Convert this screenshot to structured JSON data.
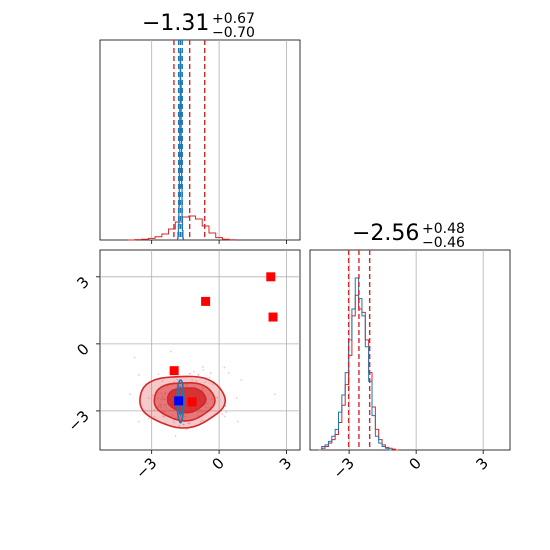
{
  "chart_data": {
    "type": "corner",
    "parameters": 2,
    "grid": true,
    "colors": {
      "blue": "#1f77b4",
      "red": "#d62728",
      "marker_red": "#ff0000",
      "marker_blue": "#0000ff",
      "grid": "#b0b0b0"
    },
    "titles": [
      {
        "value": "−1.31",
        "plus": "+0.67",
        "minus": "−0.70"
      },
      {
        "value": "−2.56",
        "plus": "+0.48",
        "minus": "−0.46"
      }
    ],
    "axes": {
      "p1_range": [
        -5.3,
        3.6
      ],
      "p2_range": [
        -4.75,
        4.2
      ],
      "p1_ticks": [
        -3,
        0,
        3
      ],
      "p2_ticks": [
        -3,
        0,
        3
      ],
      "tick_labels": {
        "-3": "−3",
        "0": "0",
        "3": "3"
      }
    },
    "hist1_quantile_lines": {
      "red": [
        -2.01,
        -1.31,
        -0.64
      ],
      "blue": [
        -1.8,
        -1.72,
        -1.64
      ]
    },
    "hist2_quantile_lines": {
      "red": [
        -3.02,
        -2.56,
        -2.08
      ]
    },
    "hist1_blue": {
      "x": [
        -1.84,
        -1.82,
        -1.8,
        -1.78,
        -1.76,
        -1.74,
        -1.72,
        -1.7,
        -1.68,
        -1.66,
        -1.64,
        -1.62,
        -1.6
      ],
      "y": [
        0.01,
        0.04,
        0.08,
        0.18,
        0.38,
        0.72,
        1.0,
        0.84,
        0.55,
        0.28,
        0.12,
        0.05,
        0.01
      ]
    },
    "hist1_red": {
      "x": [
        -3.9,
        -3.6,
        -3.3,
        -3.0,
        -2.7,
        -2.4,
        -2.1,
        -1.8,
        -1.5,
        -1.2,
        -0.9,
        -0.6,
        -0.3,
        0.0,
        0.3,
        0.6
      ],
      "y": [
        0.0,
        0.002,
        0.004,
        0.008,
        0.016,
        0.03,
        0.055,
        0.09,
        0.115,
        0.12,
        0.105,
        0.07,
        0.035,
        0.012,
        0.004,
        0.001
      ]
    },
    "hist2_red": {
      "x": [
        -4.3,
        -4.15,
        -4.0,
        -3.85,
        -3.7,
        -3.55,
        -3.4,
        -3.25,
        -3.1,
        -2.95,
        -2.8,
        -2.65,
        -2.5,
        -2.35,
        -2.2,
        -2.05,
        -1.9,
        -1.75,
        -1.6,
        -1.45,
        -1.3,
        -1.15,
        -1.0,
        -0.85
      ],
      "y": [
        0.0,
        0.01,
        0.02,
        0.04,
        0.06,
        0.09,
        0.16,
        0.26,
        0.38,
        0.55,
        0.78,
        0.9,
        0.82,
        0.8,
        0.64,
        0.45,
        0.25,
        0.12,
        0.06,
        0.03,
        0.015,
        0.01,
        0.005,
        0.0
      ]
    },
    "hist2_blue": {
      "x": [
        -4.3,
        -4.15,
        -4.0,
        -3.85,
        -3.7,
        -3.55,
        -3.4,
        -3.25,
        -3.1,
        -2.95,
        -2.8,
        -2.65,
        -2.5,
        -2.35,
        -2.2,
        -2.05,
        -1.9,
        -1.75,
        -1.6,
        -1.45,
        -1.3,
        -1.15
      ],
      "y": [
        0.0,
        0.02,
        0.03,
        0.05,
        0.08,
        0.12,
        0.22,
        0.32,
        0.45,
        0.64,
        0.82,
        1.0,
        0.88,
        0.78,
        0.6,
        0.4,
        0.2,
        0.08,
        0.04,
        0.02,
        0.01,
        0.0
      ]
    },
    "red_markers": [
      {
        "x": 2.3,
        "y": 3.0
      },
      {
        "x": -0.6,
        "y": 1.9
      },
      {
        "x": 2.4,
        "y": 1.2
      },
      {
        "x": -2.0,
        "y": -1.2
      },
      {
        "x": -1.2,
        "y": -2.6
      }
    ],
    "blue_marker": {
      "x": -1.8,
      "y": -2.55
    },
    "contours_red": [
      {
        "cx": -1.65,
        "cy": -2.55,
        "rx": 1.9,
        "ry": 1.15,
        "fill_opacity": 0.25
      },
      {
        "cx": -1.55,
        "cy": -2.55,
        "rx": 1.35,
        "ry": 0.85,
        "fill_opacity": 0.5
      },
      {
        "cx": -1.45,
        "cy": -2.5,
        "rx": 0.85,
        "ry": 0.55,
        "fill_opacity": 0.85
      }
    ],
    "contours_blue": [
      {
        "cx": -1.72,
        "cy": -2.55,
        "rx": 0.15,
        "ry": 0.95
      },
      {
        "cx": -1.72,
        "cy": -2.55,
        "rx": 0.09,
        "ry": 0.6
      }
    ]
  }
}
